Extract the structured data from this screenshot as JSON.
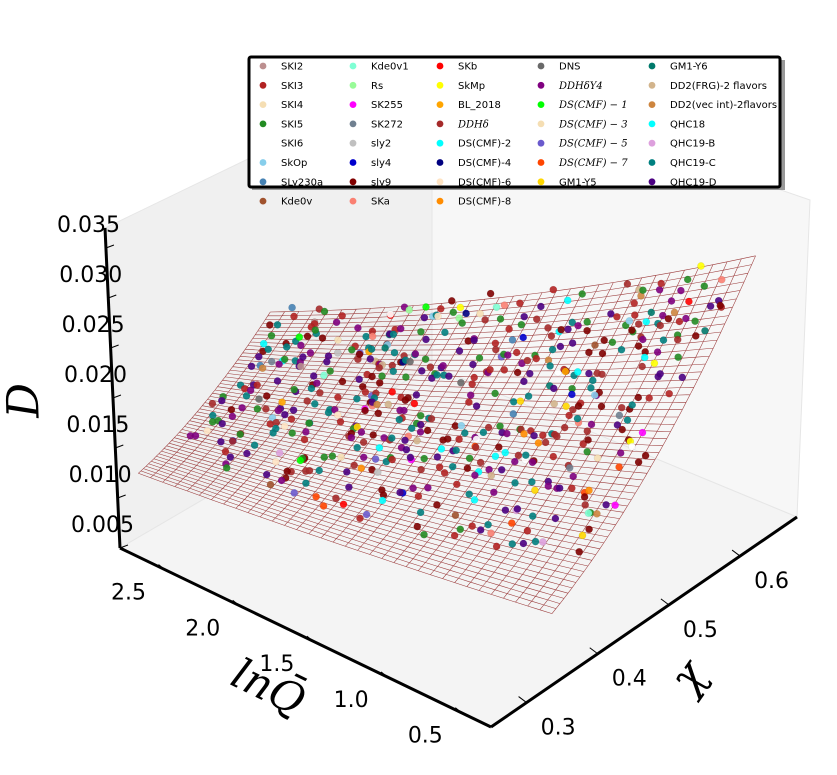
{
  "chart_data": {
    "type": "scatter",
    "projection": "3d",
    "surface": "wireframe",
    "xlabel": "χ",
    "ylabel": "lnQ̄",
    "zlabel": "D",
    "x_ticks": [
      "0.3",
      "0.4",
      "0.5",
      "0.6"
    ],
    "y_ticks": [
      "0.5",
      "1.0",
      "1.5",
      "2.0",
      "2.5"
    ],
    "z_ticks": [
      "0.005",
      "0.010",
      "0.015",
      "0.020",
      "0.025",
      "0.030",
      "0.035"
    ],
    "x_range": [
      0.25,
      0.68
    ],
    "y_range": [
      0.3,
      2.8
    ],
    "z_range": [
      0.005,
      0.037
    ],
    "legend_position": "top-right",
    "legend_columns": 5,
    "surface_color": "#8b1a1a",
    "series": [
      {
        "name": "SKI2",
        "color": "#bc8f8f"
      },
      {
        "name": "SKI3",
        "color": "#b22222"
      },
      {
        "name": "SKI4",
        "color": "#f5deb3"
      },
      {
        "name": "SKI5",
        "color": "#228b22"
      },
      {
        "name": "SKI6",
        "color": "#ffffff"
      },
      {
        "name": "SkOp",
        "color": "#87ceeb"
      },
      {
        "name": "SLy230a",
        "color": "#4682b4"
      },
      {
        "name": "Kde0v",
        "color": "#a0522d"
      },
      {
        "name": "Kde0v1",
        "color": "#7fffd4"
      },
      {
        "name": "Rs",
        "color": "#98fb98"
      },
      {
        "name": "SK255",
        "color": "#ff00ff"
      },
      {
        "name": "SK272",
        "color": "#708090"
      },
      {
        "name": "sly2",
        "color": "#c0c0c0"
      },
      {
        "name": "sly4",
        "color": "#0000cd"
      },
      {
        "name": "sly9",
        "color": "#800000"
      },
      {
        "name": "SKa",
        "color": "#fa8072"
      },
      {
        "name": "SKb",
        "color": "#ff0000"
      },
      {
        "name": "SkMp",
        "color": "#ffff00"
      },
      {
        "name": "BL_2018",
        "color": "#ffa500"
      },
      {
        "name": "DDHδ",
        "color": "#a52a2a",
        "math": true
      },
      {
        "name": "DS(CMF)-2",
        "color": "#00ffff"
      },
      {
        "name": "DS(CMF)-4",
        "color": "#000080"
      },
      {
        "name": "DS(CMF)-6",
        "color": "#ffe4c4"
      },
      {
        "name": "DS(CMF)-8",
        "color": "#ff8c00"
      },
      {
        "name": "DNS",
        "color": "#696969"
      },
      {
        "name": "DDHδY4",
        "color": "#800080",
        "math": true
      },
      {
        "name": "DS(CMF) − 1",
        "color": "#00ff00",
        "math": true
      },
      {
        "name": "DS(CMF) − 3",
        "color": "#f5deb3",
        "math": true
      },
      {
        "name": "DS(CMF) − 5",
        "color": "#6a5acd",
        "math": true
      },
      {
        "name": "DS(CMF) − 7",
        "color": "#ff4500",
        "math": true
      },
      {
        "name": "GM1-Y5",
        "color": "#ffd700"
      },
      {
        "name": "GM1-Y6",
        "color": "#00796b"
      },
      {
        "name": "DD2(FRG)-2 flavors",
        "color": "#d2b48c"
      },
      {
        "name": "DD2(vec int)-2flavors",
        "color": "#cd853f"
      },
      {
        "name": "QHC18",
        "color": "#00ffff"
      },
      {
        "name": "QHC19-B",
        "color": "#dda0dd"
      },
      {
        "name": "QHC19-C",
        "color": "#008080"
      },
      {
        "name": "QHC19-D",
        "color": "#4b0082"
      }
    ]
  }
}
